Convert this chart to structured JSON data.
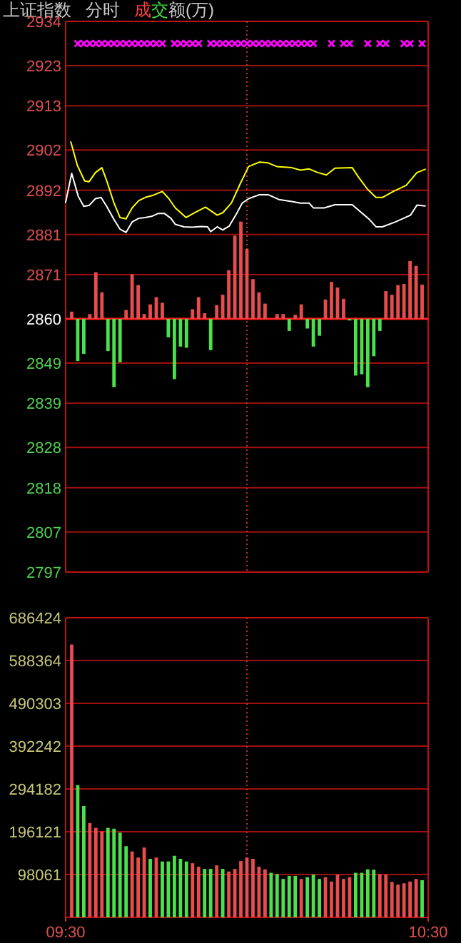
{
  "chart_data": [
    {
      "type": "line",
      "title": "上证指数",
      "subtitle": "分时",
      "annotations": [
        "成交额(万)"
      ],
      "xlim": [
        9.5,
        10.5
      ],
      "ylim": [
        2797,
        2934
      ],
      "yticks": [
        2797,
        2807,
        2818,
        2828,
        2839,
        2849,
        2860,
        2871,
        2881,
        2892,
        2902,
        2913,
        2923,
        2934
      ],
      "tick_labels": "y",
      "grid": "y",
      "ref_lines": [
        {
          "axis": "y",
          "value": 2860,
          "color": "#ff2020"
        },
        {
          "axis": "x",
          "value": 10.0,
          "color": "#c03030",
          "line_style": "dotted"
        }
      ],
      "series": [
        {
          "color": "#ffffff",
          "x": [
            9.5,
            9.5167,
            9.5347,
            9.55,
            9.5645,
            9.5822,
            9.5977,
            9.6143,
            9.6333,
            9.65,
            9.6667,
            9.6833,
            9.7013,
            9.7192,
            9.737,
            9.7548,
            9.7727,
            9.7905,
            9.8025,
            9.8263,
            9.85,
            9.8738,
            9.8917,
            9.9,
            9.918,
            9.9333,
            9.9513,
            9.9692,
            9.987,
            10.0048,
            10.0347,
            10.0583,
            10.0882,
            10.1238,
            10.1477,
            10.1715,
            10.1833,
            10.2132,
            10.243,
            10.2905,
            10.3083,
            10.3382,
            10.356,
            10.3738,
            10.4097,
            10.4513,
            10.4692,
            10.4917
          ],
          "values": [
            2889.0,
            2896.2,
            2890.5,
            2888.0,
            2888.2,
            2889.9,
            2890.2,
            2887.8,
            2884.7,
            2882.3,
            2881.5,
            2884.1,
            2885.0,
            2885.2,
            2885.5,
            2886.2,
            2886.2,
            2885.0,
            2883.5,
            2882.9,
            2882.8,
            2883.0,
            2882.9,
            2881.7,
            2882.9,
            2882.1,
            2883.1,
            2885.8,
            2888.8,
            2889.9,
            2890.9,
            2890.9,
            2889.7,
            2889.2,
            2888.8,
            2888.8,
            2887.6,
            2887.6,
            2888.4,
            2888.4,
            2887.0,
            2884.7,
            2882.9,
            2882.9,
            2884.1,
            2885.8,
            2888.3,
            2888.1
          ]
        },
        {
          "color": "#ffff00",
          "x": [
            9.5143,
            9.5322,
            9.5525,
            9.5645,
            9.5822,
            9.6,
            9.6143,
            9.6333,
            9.65,
            9.6667,
            9.6833,
            9.7013,
            9.7192,
            9.743,
            9.7667,
            9.7847,
            9.8025,
            9.8322,
            9.856,
            9.8858,
            9.918,
            9.9333,
            9.9572,
            9.981,
            10.0048,
            10.0347,
            10.0583,
            10.0822,
            10.1238,
            10.1477,
            10.1715,
            10.1953,
            10.2192,
            10.243,
            10.2905,
            10.3083,
            10.3322,
            10.356,
            10.3738,
            10.4037,
            10.4393,
            10.4692,
            10.4917
          ],
          "values": [
            2904.0,
            2898.2,
            2894.3,
            2894.1,
            2896.4,
            2897.6,
            2894.1,
            2888.8,
            2885.2,
            2884.9,
            2887.6,
            2889.4,
            2890.2,
            2890.8,
            2891.7,
            2889.9,
            2887.6,
            2885.2,
            2886.4,
            2887.8,
            2885.8,
            2886.4,
            2888.8,
            2893.5,
            2897.9,
            2899.0,
            2898.8,
            2897.9,
            2897.6,
            2897.0,
            2897.3,
            2896.4,
            2895.8,
            2897.5,
            2897.6,
            2895.2,
            2892.3,
            2890.2,
            2890.2,
            2891.7,
            2893.2,
            2896.4,
            2897.2
          ]
        },
        {
          "type": "bar",
          "x": [
            9.5167,
            9.5333,
            9.55,
            9.5667,
            9.5833,
            9.6,
            9.6167,
            9.6333,
            9.65,
            9.6667,
            9.6833,
            9.7,
            9.7167,
            9.7333,
            9.75,
            9.7667,
            9.7833,
            9.8,
            9.8167,
            9.8333,
            9.85,
            9.8667,
            9.8833,
            9.9,
            9.9167,
            9.9333,
            9.95,
            9.9667,
            9.9833,
            10.0,
            10.0167,
            10.0333,
            10.05,
            10.0833,
            10.1,
            10.1167,
            10.1333,
            10.15,
            10.1667,
            10.1833,
            10.2,
            10.2167,
            10.2333,
            10.25,
            10.2667,
            10.2833,
            10.3,
            10.3167,
            10.3333,
            10.35,
            10.3667,
            10.3833,
            10.4,
            10.4167,
            10.4333,
            10.45,
            10.4667,
            10.4833
          ],
          "base": [
            2860,
            2860,
            2860,
            2860,
            2860,
            2860,
            2860,
            2860,
            2860,
            2860,
            2860,
            2860,
            2860,
            2860,
            2860,
            2860,
            2860,
            2860,
            2860,
            2860,
            2860,
            2860,
            2860,
            2860,
            2860,
            2860,
            2860,
            2860,
            2860,
            2860,
            2860,
            2860,
            2860,
            2860,
            2860,
            2860,
            2860,
            2860,
            2860,
            2860,
            2860,
            2860,
            2860,
            2860,
            2860,
            2860,
            2860,
            2860,
            2860,
            2860,
            2860,
            2860,
            2860,
            2860,
            2860,
            2860,
            2860,
            2860
          ],
          "values": [
            1.8,
            -10.5,
            -8.7,
            1.2,
            11.6,
            6.6,
            -8.0,
            -17.0,
            -10.8,
            2.2,
            11.1,
            8.4,
            1.2,
            3.6,
            5.4,
            4.0,
            -4.6,
            -15.0,
            -6.9,
            -7.2,
            2.4,
            5.4,
            1.4,
            -7.8,
            3.4,
            6.0,
            12.1,
            20.7,
            24.2,
            17.4,
            9.9,
            6.6,
            3.8,
            1.2,
            1.2,
            -3.0,
            1.0,
            3.6,
            -2.4,
            -6.9,
            -4.2,
            4.8,
            9.2,
            7.8,
            5.0,
            -0.4,
            -14.1,
            -13.8,
            -17.0,
            -9.3,
            -3.0,
            6.9,
            6.0,
            8.4,
            8.7,
            14.4,
            13.2,
            8.5
          ],
          "colors": [
            "#e84c4c",
            "#4ce04c",
            "#4ce04c",
            "#e84c4c",
            "#e84c4c",
            "#e84c4c",
            "#4ce04c",
            "#4ce04c",
            "#4ce04c",
            "#e84c4c",
            "#e84c4c",
            "#e84c4c",
            "#e84c4c",
            "#e84c4c",
            "#e84c4c",
            "#e84c4c",
            "#4ce04c",
            "#4ce04c",
            "#4ce04c",
            "#4ce04c",
            "#e84c4c",
            "#e84c4c",
            "#e84c4c",
            "#4ce04c",
            "#e84c4c",
            "#e84c4c",
            "#e84c4c",
            "#e84c4c",
            "#e84c4c",
            "#e84c4c",
            "#e84c4c",
            "#e84c4c",
            "#e84c4c",
            "#e84c4c",
            "#e84c4c",
            "#4ce04c",
            "#e84c4c",
            "#e84c4c",
            "#4ce04c",
            "#4ce04c",
            "#4ce04c",
            "#e84c4c",
            "#e84c4c",
            "#e84c4c",
            "#e84c4c",
            "#4ce04c",
            "#4ce04c",
            "#4ce04c",
            "#4ce04c",
            "#4ce04c",
            "#4ce04c",
            "#e84c4c",
            "#e84c4c",
            "#e84c4c",
            "#e84c4c",
            "#e84c4c",
            "#e84c4c",
            "#e84c4c"
          ]
        },
        {
          "type": "scatter",
          "color": "#ff00ff",
          "marker": "cross",
          "x": [
            9.5333,
            9.55,
            9.5667,
            9.5833,
            9.6,
            9.6167,
            9.6333,
            9.65,
            9.6667,
            9.6833,
            9.7,
            9.7167,
            9.7333,
            9.75,
            9.7667,
            9.8,
            9.8167,
            9.8333,
            9.85,
            9.8667,
            9.9,
            9.9167,
            9.9333,
            9.95,
            9.9667,
            9.9833,
            10.0,
            10.0167,
            10.0333,
            10.05,
            10.0667,
            10.0833,
            10.1,
            10.1167,
            10.1333,
            10.15,
            10.1667,
            10.1833,
            10.2333,
            10.2667,
            10.2833,
            10.3333,
            10.3667,
            10.3833,
            10.4333,
            10.45,
            10.4833
          ],
          "values": [
            2928.5,
            2928.5,
            2928.5,
            2928.5,
            2928.5,
            2928.5,
            2928.5,
            2928.5,
            2928.5,
            2928.5,
            2928.5,
            2928.5,
            2928.5,
            2928.5,
            2928.5,
            2928.5,
            2928.5,
            2928.5,
            2928.5,
            2928.5,
            2928.5,
            2928.5,
            2928.5,
            2928.5,
            2928.5,
            2928.5,
            2928.5,
            2928.5,
            2928.5,
            2928.5,
            2928.5,
            2928.5,
            2928.5,
            2928.5,
            2928.5,
            2928.5,
            2928.5,
            2928.5,
            2928.5,
            2928.5,
            2928.5,
            2928.5,
            2928.5,
            2928.5,
            2928.5,
            2928.5,
            2928.5
          ]
        }
      ]
    },
    {
      "type": "bar",
      "xlim": [
        9.5,
        10.5
      ],
      "xticks": [
        {
          "value": 9.5,
          "label": "09:30"
        },
        {
          "value": 10.5,
          "label": "10:30"
        }
      ],
      "ylim": [
        0,
        686424
      ],
      "yticks": [
        98061,
        196121,
        294182,
        392242,
        490303,
        588364,
        686424
      ],
      "grid": "y",
      "ref_lines": [
        {
          "axis": "x",
          "value": 10.0,
          "color": "#c03030",
          "line_style": "dotted"
        }
      ],
      "x": [
        9.5167,
        9.5333,
        9.55,
        9.5667,
        9.5833,
        9.6,
        9.6167,
        9.6333,
        9.65,
        9.6667,
        9.6833,
        9.7,
        9.7167,
        9.7333,
        9.75,
        9.7667,
        9.7833,
        9.8,
        9.8167,
        9.8333,
        9.85,
        9.8667,
        9.8833,
        9.9,
        9.9167,
        9.9333,
        9.95,
        9.9667,
        9.9833,
        10.0,
        10.0167,
        10.0333,
        10.05,
        10.0667,
        10.0833,
        10.1,
        10.1167,
        10.1333,
        10.15,
        10.1667,
        10.1833,
        10.2,
        10.2167,
        10.2333,
        10.25,
        10.2667,
        10.2833,
        10.3,
        10.3167,
        10.3333,
        10.35,
        10.3667,
        10.3833,
        10.4,
        10.4167,
        10.4333,
        10.45,
        10.4667,
        10.4833
      ],
      "values": [
        625000,
        303000,
        255000,
        216000,
        205000,
        197000,
        205000,
        203000,
        194000,
        163000,
        151000,
        137000,
        160000,
        134000,
        137000,
        128000,
        128000,
        141000,
        134000,
        128000,
        124000,
        116000,
        111000,
        111000,
        119000,
        111000,
        105000,
        111000,
        129000,
        137000,
        134000,
        116000,
        110000,
        102000,
        99000,
        88000,
        95000,
        95000,
        88000,
        92000,
        98000,
        88000,
        92000,
        82000,
        98000,
        88000,
        92000,
        102000,
        102000,
        110000,
        109000,
        99000,
        98000,
        81000,
        75000,
        78000,
        82000,
        88000,
        85000
      ],
      "colors": [
        "#e84c4c",
        "#4ce04c",
        "#4ce04c",
        "#e84c4c",
        "#e84c4c",
        "#e84c4c",
        "#4ce04c",
        "#4ce04c",
        "#4ce04c",
        "#4ce04c",
        "#e84c4c",
        "#e84c4c",
        "#e84c4c",
        "#4ce04c",
        "#e84c4c",
        "#4ce04c",
        "#4ce04c",
        "#4ce04c",
        "#4ce04c",
        "#4ce04c",
        "#e84c4c",
        "#e84c4c",
        "#4ce04c",
        "#4ce04c",
        "#e84c4c",
        "#4ce04c",
        "#e84c4c",
        "#e84c4c",
        "#e84c4c",
        "#e84c4c",
        "#e84c4c",
        "#e84c4c",
        "#e84c4c",
        "#4ce04c",
        "#4ce04c",
        "#4ce04c",
        "#4ce04c",
        "#4ce04c",
        "#e84c4c",
        "#4ce04c",
        "#4ce04c",
        "#4ce04c",
        "#e84c4c",
        "#e84c4c",
        "#e84c4c",
        "#e84c4c",
        "#e84c4c",
        "#4ce04c",
        "#4ce04c",
        "#4ce04c",
        "#4ce04c",
        "#e84c4c",
        "#e84c4c",
        "#e84c4c",
        "#e84c4c",
        "#e84c4c",
        "#e84c4c",
        "#e84c4c",
        "#4ce04c"
      ]
    }
  ]
}
